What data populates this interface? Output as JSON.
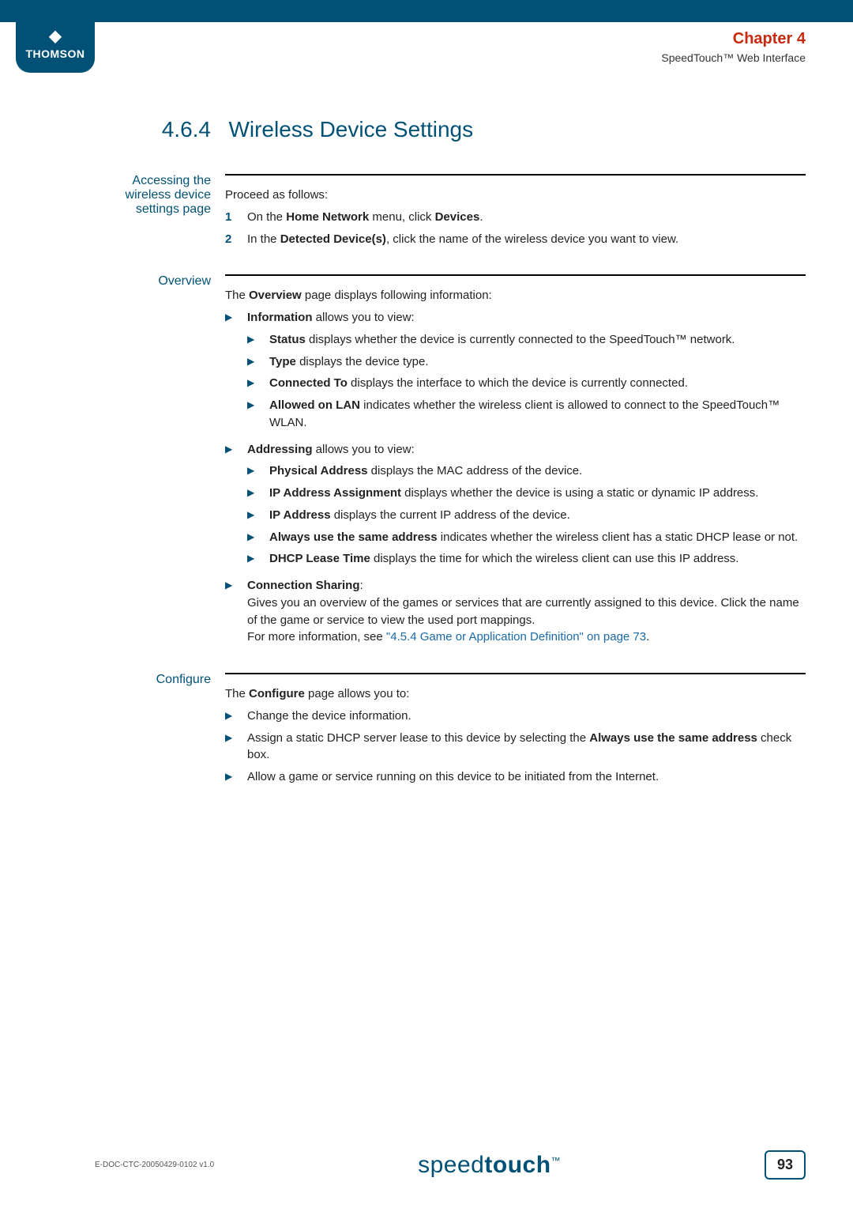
{
  "brand": {
    "logo_text": "THOMSON"
  },
  "header": {
    "chapter": "Chapter 4",
    "subtitle": "SpeedTouch™ Web Interface"
  },
  "section": {
    "number": "4.6.4",
    "title": "Wireless Device Settings"
  },
  "accessing": {
    "label": "Accessing the wireless device settings page",
    "intro": "Proceed as follows:",
    "step1_pre": "On the ",
    "step1_b1": "Home Network",
    "step1_mid": " menu, click ",
    "step1_b2": "Devices",
    "step1_post": ".",
    "step2_pre": "In the ",
    "step2_b1": "Detected Device(s)",
    "step2_post": ", click the name of the wireless device you want to view."
  },
  "overview": {
    "label": "Overview",
    "intro_pre": "The ",
    "intro_b": "Overview",
    "intro_post": " page displays following information:",
    "info_b": "Information",
    "info_post": " allows you to view:",
    "info_status_b": "Status",
    "info_status_post": " displays whether the device is currently connected to the SpeedTouch™ network.",
    "info_type_b": "Type",
    "info_type_post": " displays the device type.",
    "info_conn_b": "Connected To",
    "info_conn_post": " displays the interface to which the device is currently connected.",
    "info_lan_b": "Allowed on LAN",
    "info_lan_post": " indicates whether the wireless client is allowed to connect to the SpeedTouch™ WLAN.",
    "addr_b": "Addressing",
    "addr_post": " allows you to view:",
    "addr_phys_b": "Physical Address",
    "addr_phys_post": " displays the MAC address of the device.",
    "addr_assign_b": "IP Address Assignment",
    "addr_assign_post": " displays whether the device is using a static or dynamic IP address.",
    "addr_ip_b": "IP Address",
    "addr_ip_post": " displays the current IP address of the device.",
    "addr_same_b": "Always use the same address",
    "addr_same_post": " indicates whether the wireless client has a static DHCP lease or not.",
    "addr_lease_b": "DHCP Lease Time",
    "addr_lease_post": " displays the time for which the wireless client can use this IP address.",
    "conn_b": "Connection Sharing",
    "conn_colon": ":",
    "conn_body": "Gives you an overview of the games or services that are currently assigned to this device. Click the name of the game or service to view the used port mappings.",
    "conn_more_pre": "For more information, see ",
    "conn_more_link": "\"4.5.4 Game or Application Definition\" on page 73",
    "conn_more_post": "."
  },
  "configure": {
    "label": "Configure",
    "intro_pre": "The ",
    "intro_b": "Configure",
    "intro_post": " page allows you to:",
    "item1": "Change the device information.",
    "item2_pre": "Assign a static DHCP server lease to this device by selecting the ",
    "item2_b": "Always use the same address",
    "item2_post": " check box.",
    "item3": "Allow a game or service running on this device to be initiated from the Internet."
  },
  "footer": {
    "doc_id": "E-DOC-CTC-20050429-0102 v1.0",
    "logo_light": "speed",
    "logo_bold": "touch",
    "logo_tm": "™",
    "page": "93"
  },
  "colors": {
    "brand": "#005175",
    "accent": "#c72a0f",
    "link": "#1a6aa8",
    "text": "#222222",
    "bg": "#ffffff"
  }
}
